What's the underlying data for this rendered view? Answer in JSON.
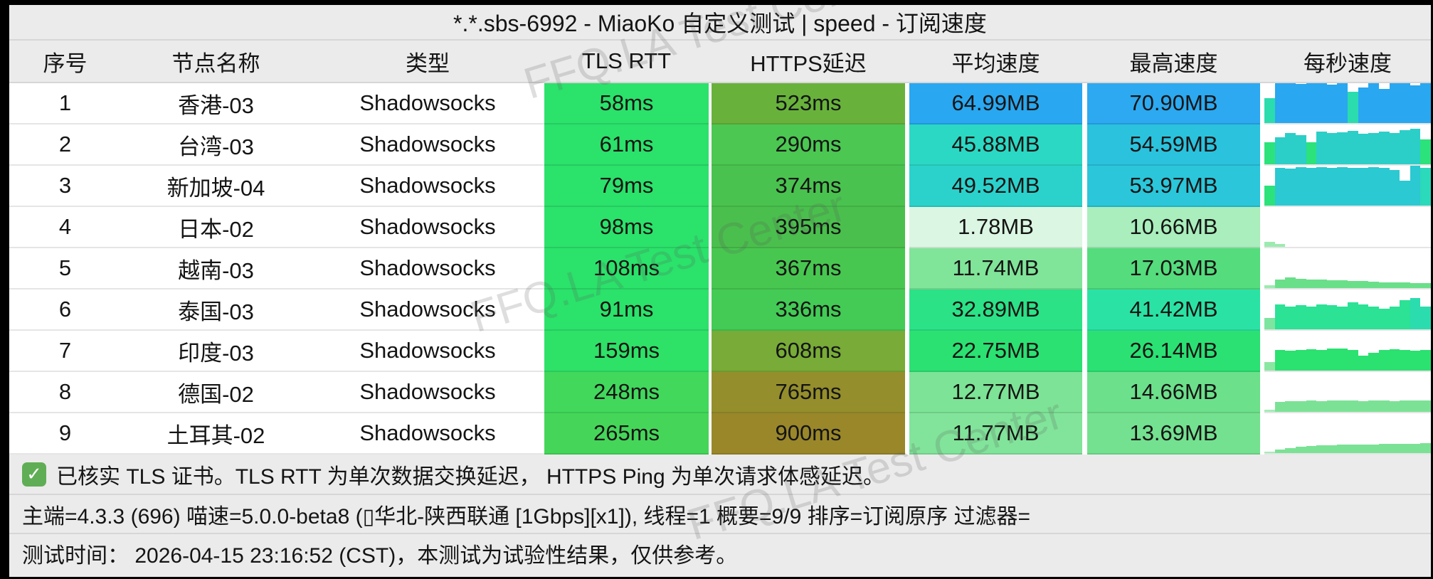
{
  "title": "*.*.sbs-6992 - MiaoKo 自定义测试 | speed - 订阅速度",
  "watermark": {
    "text": "FFQ.LA Test Center"
  },
  "table": {
    "columns": [
      "序号",
      "节点名称",
      "类型",
      "TLS RTT",
      "HTTPS延迟",
      "平均速度",
      "最高速度",
      "每秒速度"
    ],
    "rows": [
      {
        "seq": "1",
        "name": "香港-03",
        "type": "Shadowsocks",
        "tls": {
          "text": "58ms",
          "bg": "#2BE26B"
        },
        "https": {
          "text": "523ms",
          "bg": "#68B23B"
        },
        "avg": {
          "text": "64.99MB",
          "bg": "#29A7F0"
        },
        "max": {
          "text": "70.90MB",
          "bg": "#2CA9F0"
        },
        "bars": {
          "heights": [
            0.62,
            1,
            1,
            0.98,
            1,
            1,
            0.97,
            1,
            0.78,
            0.9,
            1,
            0.85,
            1,
            1,
            0.95,
            1
          ],
          "colors": [
            "#2BDCAE",
            "#29A7F0",
            "#29A7F0",
            "#29A7F0",
            "#29A7F0",
            "#29A7F0",
            "#29A7F0",
            "#29A7F0",
            "#2BDCAE",
            "#29A7F0",
            "#29A7F0",
            "#29A7F0",
            "#29A7F0",
            "#29A7F0",
            "#29A7F0",
            "#29A7F0"
          ]
        }
      },
      {
        "seq": "2",
        "name": "台湾-03",
        "type": "Shadowsocks",
        "tls": {
          "text": "61ms",
          "bg": "#2BE26B"
        },
        "https": {
          "text": "290ms",
          "bg": "#4BC752"
        },
        "avg": {
          "text": "45.88MB",
          "bg": "#2BD8C3"
        },
        "max": {
          "text": "54.59MB",
          "bg": "#2BC2DD"
        },
        "bars": {
          "heights": [
            0.55,
            0.68,
            0.78,
            0.74,
            0.56,
            0.82,
            0.78,
            0.8,
            0.84,
            0.76,
            0.78,
            0.82,
            0.78,
            0.86,
            0.9,
            0.62
          ],
          "colors": [
            "#2BE27B",
            "#2BCFC7",
            "#2BCFC7",
            "#2BCFC7",
            "#2BE27B",
            "#2BCFC7",
            "#2BCFC7",
            "#2BCFC7",
            "#2BCFC7",
            "#2BCFC7",
            "#2BCFC7",
            "#2BCFC7",
            "#2BCFC7",
            "#2BCFC7",
            "#2BCFC7",
            "#2BE27B"
          ]
        }
      },
      {
        "seq": "3",
        "name": "新加坡-04",
        "type": "Shadowsocks",
        "tls": {
          "text": "79ms",
          "bg": "#2BE26B"
        },
        "https": {
          "text": "374ms",
          "bg": "#4AC24F"
        },
        "avg": {
          "text": "49.52MB",
          "bg": "#2BD2CC"
        },
        "max": {
          "text": "53.97MB",
          "bg": "#2BC6DA"
        },
        "bars": {
          "heights": [
            0.5,
            0.95,
            0.93,
            0.96,
            0.95,
            0.96,
            0.95,
            0.97,
            0.95,
            0.94,
            0.96,
            0.95,
            0.9,
            0.62,
            1,
            0.95
          ],
          "colors": [
            "#2BE27B",
            "#2BC9D1",
            "#2BC9D1",
            "#2BC9D1",
            "#2BC9D1",
            "#2BC9D1",
            "#2BC9D1",
            "#2BC9D1",
            "#2BC9D1",
            "#2BC9D1",
            "#2BC9D1",
            "#2BC9D1",
            "#2BC9D1",
            "#2BC9D1",
            "#2BC9D1",
            "#2BD9BB"
          ]
        }
      },
      {
        "seq": "4",
        "name": "日本-02",
        "type": "Shadowsocks",
        "tls": {
          "text": "98ms",
          "bg": "#2BE26B"
        },
        "https": {
          "text": "395ms",
          "bg": "#4ABF4D"
        },
        "avg": {
          "text": "1.78MB",
          "bg": "#DBF6E2"
        },
        "max": {
          "text": "10.66MB",
          "bg": "#A9EEBC"
        },
        "bars": {
          "heights": [
            0.13,
            0.07,
            0,
            0,
            0,
            0,
            0,
            0,
            0,
            0,
            0,
            0,
            0,
            0,
            0,
            0
          ],
          "colors": [
            "#9BEBAF",
            "#9BEBAF",
            "#9BEBAF",
            "#9BEBAF",
            "#9BEBAF",
            "#9BEBAF",
            "#9BEBAF",
            "#9BEBAF",
            "#9BEBAF",
            "#9BEBAF",
            "#9BEBAF",
            "#9BEBAF",
            "#9BEBAF",
            "#9BEBAF",
            "#9BEBAF",
            "#9BEBAF"
          ]
        }
      },
      {
        "seq": "5",
        "name": "越南-03",
        "type": "Shadowsocks",
        "tls": {
          "text": "108ms",
          "bg": "#2BE26B"
        },
        "https": {
          "text": "367ms",
          "bg": "#48C750"
        },
        "avg": {
          "text": "11.74MB",
          "bg": "#80E499"
        },
        "max": {
          "text": "17.03MB",
          "bg": "#55DC7D"
        },
        "bars": {
          "heights": [
            0.08,
            0.22,
            0.26,
            0.24,
            0.22,
            0.21,
            0.2,
            0.19,
            0.18,
            0.17,
            0.16,
            0.15,
            0.15,
            0.14,
            0.13,
            0.13
          ],
          "colors": [
            "#9BEBAF",
            "#6ADF8A",
            "#6ADF8A",
            "#6ADF8A",
            "#6ADF8A",
            "#6ADF8A",
            "#6ADF8A",
            "#6ADF8A",
            "#6ADF8A",
            "#6ADF8A",
            "#6ADF8A",
            "#6ADF8A",
            "#6ADF8A",
            "#6ADF8A",
            "#6ADF8A",
            "#6ADF8A"
          ]
        }
      },
      {
        "seq": "6",
        "name": "泰国-03",
        "type": "Shadowsocks",
        "tls": {
          "text": "91ms",
          "bg": "#2BE26B"
        },
        "https": {
          "text": "336ms",
          "bg": "#43CB55"
        },
        "avg": {
          "text": "32.89MB",
          "bg": "#2BE287"
        },
        "max": {
          "text": "41.42MB",
          "bg": "#2BE2A5"
        },
        "bars": {
          "heights": [
            0.28,
            0.62,
            0.58,
            0.6,
            0.58,
            0.63,
            0.6,
            0.58,
            0.67,
            0.62,
            0.58,
            0.52,
            0.57,
            0.73,
            0.79,
            0.58
          ],
          "colors": [
            "#7CE5A0",
            "#2BE295",
            "#2BE295",
            "#2BE295",
            "#2BE295",
            "#2BE295",
            "#2BE295",
            "#2BE295",
            "#2BE295",
            "#2BE295",
            "#2BE295",
            "#2BE295",
            "#2BE295",
            "#2BE295",
            "#2BDCAE",
            "#2BDCAE"
          ]
        }
      },
      {
        "seq": "7",
        "name": "印度-03",
        "type": "Shadowsocks",
        "tls": {
          "text": "159ms",
          "bg": "#2EE167"
        },
        "https": {
          "text": "608ms",
          "bg": "#78AB37"
        },
        "avg": {
          "text": "22.75MB",
          "bg": "#2BE172"
        },
        "max": {
          "text": "26.14MB",
          "bg": "#2BE174"
        },
        "bars": {
          "heights": [
            0.22,
            0.52,
            0.5,
            0.52,
            0.54,
            0.52,
            0.55,
            0.56,
            0.52,
            0.38,
            0.44,
            0.51,
            0.53,
            0.52,
            0.5,
            0.52
          ],
          "colors": [
            "#8AE7A2",
            "#2BE170",
            "#2BE170",
            "#2BE170",
            "#2BE170",
            "#2BE170",
            "#2BE170",
            "#2BE170",
            "#2BE170",
            "#2BE170",
            "#2BE170",
            "#2BE170",
            "#2BE170",
            "#2BE170",
            "#2BE170",
            "#2BE170"
          ]
        }
      },
      {
        "seq": "8",
        "name": "德国-02",
        "type": "Shadowsocks",
        "tls": {
          "text": "248ms",
          "bg": "#41D85C"
        },
        "https": {
          "text": "765ms",
          "bg": "#948E2C"
        },
        "avg": {
          "text": "12.77MB",
          "bg": "#7DE396"
        },
        "max": {
          "text": "14.66MB",
          "bg": "#6CE08B"
        },
        "bars": {
          "heights": [
            0.05,
            0.25,
            0.27,
            0.26,
            0.28,
            0.27,
            0.28,
            0.29,
            0.28,
            0.27,
            0.28,
            0.28,
            0.27,
            0.28,
            0.28,
            0.28
          ],
          "colors": [
            "#A5ECB8",
            "#7BE295",
            "#7BE295",
            "#7BE295",
            "#7BE295",
            "#7BE295",
            "#7BE295",
            "#7BE295",
            "#7BE295",
            "#7BE295",
            "#7BE295",
            "#7BE295",
            "#7BE295",
            "#7BE295",
            "#7BE295",
            "#7BE295"
          ]
        }
      },
      {
        "seq": "9",
        "name": "土耳其-02",
        "type": "Shadowsocks",
        "tls": {
          "text": "265ms",
          "bg": "#45D659"
        },
        "https": {
          "text": "900ms",
          "bg": "#99872A"
        },
        "avg": {
          "text": "11.77MB",
          "bg": "#81E49A"
        },
        "max": {
          "text": "13.69MB",
          "bg": "#74E190"
        },
        "bars": {
          "heights": [
            0.04,
            0.09,
            0.13,
            0.16,
            0.18,
            0.19,
            0.2,
            0.21,
            0.21,
            0.22,
            0.22,
            0.23,
            0.23,
            0.24,
            0.24,
            0.25
          ],
          "colors": [
            "#A5ECB8",
            "#7BE295",
            "#7BE295",
            "#7BE295",
            "#7BE295",
            "#7BE295",
            "#7BE295",
            "#7BE295",
            "#7BE295",
            "#7BE295",
            "#7BE295",
            "#7BE295",
            "#7BE295",
            "#7BE295",
            "#7BE295",
            "#7BE295"
          ]
        }
      }
    ]
  },
  "footer": {
    "check_icon": "✓",
    "line1": "已核实 TLS 证书。TLS RTT 为单次数据交换延迟， HTTPS Ping 为单次请求体感延迟。",
    "line2": "主端=4.3.3 (696) 喵速=5.0.0-beta8 (▯华北-陕西联通 [1Gbps][x1]), 线程=1 概要=9/9 排序=订阅原序 过滤器=",
    "line3": "测试时间： 2026-04-15 23:16:52 (CST)，本测试为试验性结果，仅供参考。"
  },
  "colors": {
    "background": "#EBEBEB",
    "row_background": "#FFFFFF",
    "divider": "#D6D6D6",
    "frame_border": "#000000",
    "check_icon_bg": "#5FAE55",
    "text": "#141414",
    "watermark": "rgba(90,90,90,0.20)"
  }
}
